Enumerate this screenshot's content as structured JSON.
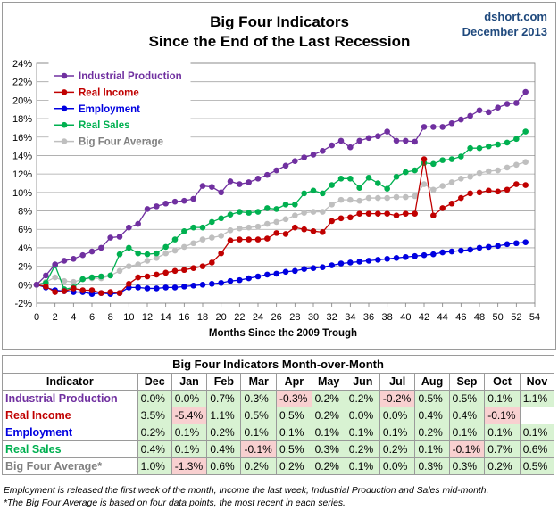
{
  "chart_data": {
    "type": "line",
    "title": "Big Four Indicators",
    "subtitle": "Since the End of the Last Recession",
    "source": "dshort.com",
    "date": "December 2013",
    "xlabel": "Months Since the 2009 Trough",
    "xlim": [
      0,
      54
    ],
    "ylim": [
      -2,
      24
    ],
    "x_ticks": [
      0,
      2,
      4,
      6,
      8,
      10,
      12,
      14,
      16,
      18,
      20,
      22,
      24,
      26,
      28,
      30,
      32,
      34,
      36,
      38,
      40,
      42,
      44,
      46,
      48,
      50,
      52,
      54
    ],
    "y_ticks": [
      "-2%",
      "0%",
      "2%",
      "4%",
      "6%",
      "8%",
      "10%",
      "12%",
      "14%",
      "16%",
      "18%",
      "20%",
      "22%",
      "24%"
    ],
    "grid": true,
    "legend_position": "top-left",
    "series": [
      {
        "name": "Industrial Production",
        "color": "#7030a0",
        "values": [
          0,
          1.0,
          2.2,
          2.6,
          2.8,
          3.2,
          3.6,
          4.0,
          5.1,
          5.2,
          6.2,
          6.6,
          8.2,
          8.5,
          8.8,
          9.0,
          9.1,
          9.3,
          10.7,
          10.6,
          10.0,
          11.2,
          10.9,
          11.1,
          11.5,
          11.9,
          12.4,
          12.9,
          13.4,
          13.8,
          14.1,
          14.5,
          15.1,
          15.6,
          14.9,
          15.6,
          15.9,
          16.1,
          16.6,
          15.6,
          15.6,
          15.5,
          17.1,
          17.1,
          17.1,
          17.5,
          17.9,
          18.3,
          18.9,
          18.7,
          19.2,
          19.6,
          19.7,
          20.9
        ]
      },
      {
        "name": "Real Income",
        "color": "#c00000",
        "values": [
          0,
          -0.2,
          -0.8,
          -0.7,
          -0.4,
          -0.6,
          -0.6,
          -0.9,
          -0.8,
          -0.9,
          0.1,
          0.8,
          0.9,
          1.1,
          1.3,
          1.5,
          1.6,
          1.8,
          2.0,
          2.4,
          3.4,
          4.8,
          4.9,
          4.9,
          4.9,
          5.0,
          5.6,
          5.5,
          6.2,
          6.0,
          5.8,
          5.7,
          6.9,
          7.2,
          7.3,
          7.7,
          7.7,
          7.7,
          7.7,
          7.5,
          7.7,
          7.7,
          13.6,
          7.5,
          8.3,
          8.8,
          9.4,
          9.9,
          10.0,
          10.2,
          10.1,
          10.3,
          10.9,
          10.8
        ]
      },
      {
        "name": "Employment",
        "color": "#0000e0",
        "values": [
          0,
          -0.3,
          -0.6,
          -0.7,
          -0.8,
          -0.8,
          -1.0,
          -0.9,
          -1.0,
          -0.9,
          -0.3,
          -0.3,
          -0.4,
          -0.4,
          -0.3,
          -0.3,
          -0.2,
          -0.1,
          0.0,
          0.1,
          0.2,
          0.4,
          0.5,
          0.7,
          0.9,
          1.1,
          1.2,
          1.4,
          1.5,
          1.7,
          1.8,
          1.9,
          2.1,
          2.3,
          2.4,
          2.5,
          2.6,
          2.7,
          2.8,
          2.9,
          3.0,
          3.1,
          3.2,
          3.3,
          3.5,
          3.6,
          3.7,
          3.8,
          4.0,
          4.1,
          4.2,
          4.4,
          4.5,
          4.6
        ]
      },
      {
        "name": "Real Sales",
        "color": "#00b050",
        "values": [
          0,
          0.2,
          2.1,
          -0.5,
          -0.3,
          0.6,
          0.8,
          0.9,
          1.0,
          3.3,
          4.0,
          3.4,
          3.3,
          3.4,
          4.1,
          4.9,
          5.8,
          6.2,
          6.2,
          6.8,
          7.2,
          7.6,
          7.9,
          7.8,
          7.9,
          8.3,
          8.2,
          8.7,
          8.7,
          9.9,
          10.2,
          9.9,
          10.8,
          11.5,
          11.5,
          10.5,
          11.6,
          11.0,
          10.4,
          11.7,
          12.2,
          12.4,
          13.2,
          13.1,
          13.5,
          13.6,
          13.9,
          14.8,
          14.8,
          15.0,
          15.2,
          15.4,
          15.8,
          16.6
        ]
      },
      {
        "name": "Big Four Average",
        "color": "#bfbfbf",
        "values": [
          0,
          0.3,
          0.8,
          0.4,
          0.3,
          0.6,
          0.7,
          0.7,
          1.0,
          1.5,
          2.0,
          2.2,
          2.6,
          2.9,
          3.4,
          3.7,
          4.1,
          4.5,
          4.9,
          5.1,
          5.3,
          5.9,
          6.1,
          6.2,
          6.3,
          6.6,
          6.8,
          7.1,
          7.5,
          7.8,
          7.9,
          7.9,
          8.7,
          9.2,
          9.2,
          9.1,
          9.4,
          9.4,
          9.4,
          9.5,
          9.5,
          9.6,
          10.9,
          10.3,
          10.7,
          11.1,
          11.5,
          11.7,
          12.1,
          12.3,
          12.4,
          12.7,
          13.0,
          13.3
        ]
      }
    ]
  },
  "table": {
    "caption": "Big Four Indicators Month-over-Month",
    "header": [
      "Indicator",
      "Dec",
      "Jan",
      "Feb",
      "Mar",
      "Apr",
      "May",
      "Jun",
      "Jul",
      "Aug",
      "Sep",
      "Oct",
      "Nov"
    ],
    "rows": [
      {
        "name": "Industrial Production",
        "color": "#7030a0",
        "values": [
          "0.0%",
          "0.0%",
          "0.7%",
          "0.3%",
          "-0.3%",
          "0.2%",
          "0.2%",
          "-0.2%",
          "0.5%",
          "0.5%",
          "0.1%",
          "1.1%"
        ]
      },
      {
        "name": "Real Income",
        "color": "#c00000",
        "values": [
          "3.5%",
          "-5.4%",
          "1.1%",
          "0.5%",
          "0.5%",
          "0.2%",
          "0.0%",
          "0.0%",
          "0.4%",
          "0.4%",
          "-0.1%",
          ""
        ]
      },
      {
        "name": "Employment",
        "color": "#0000e0",
        "values": [
          "0.2%",
          "0.1%",
          "0.2%",
          "0.1%",
          "0.1%",
          "0.1%",
          "0.1%",
          "0.1%",
          "0.2%",
          "0.1%",
          "0.1%",
          "0.1%"
        ]
      },
      {
        "name": "Real Sales",
        "color": "#00b050",
        "values": [
          "0.4%",
          "0.1%",
          "0.4%",
          "-0.1%",
          "0.5%",
          "0.3%",
          "0.2%",
          "0.2%",
          "0.1%",
          "-0.1%",
          "0.7%",
          "0.6%"
        ]
      },
      {
        "name": "Big Four Average*",
        "color": "#808080",
        "values": [
          "1.0%",
          "-1.3%",
          "0.6%",
          "0.2%",
          "0.2%",
          "0.2%",
          "0.1%",
          "0.0%",
          "0.3%",
          "0.3%",
          "0.2%",
          "0.5%"
        ]
      }
    ]
  },
  "notes": [
    "Employment is released the first week of the month, Income the last week, Industrial Production and Sales mid-month.",
    "*The Big Four Average is based on four data points, the most recent in each series."
  ]
}
